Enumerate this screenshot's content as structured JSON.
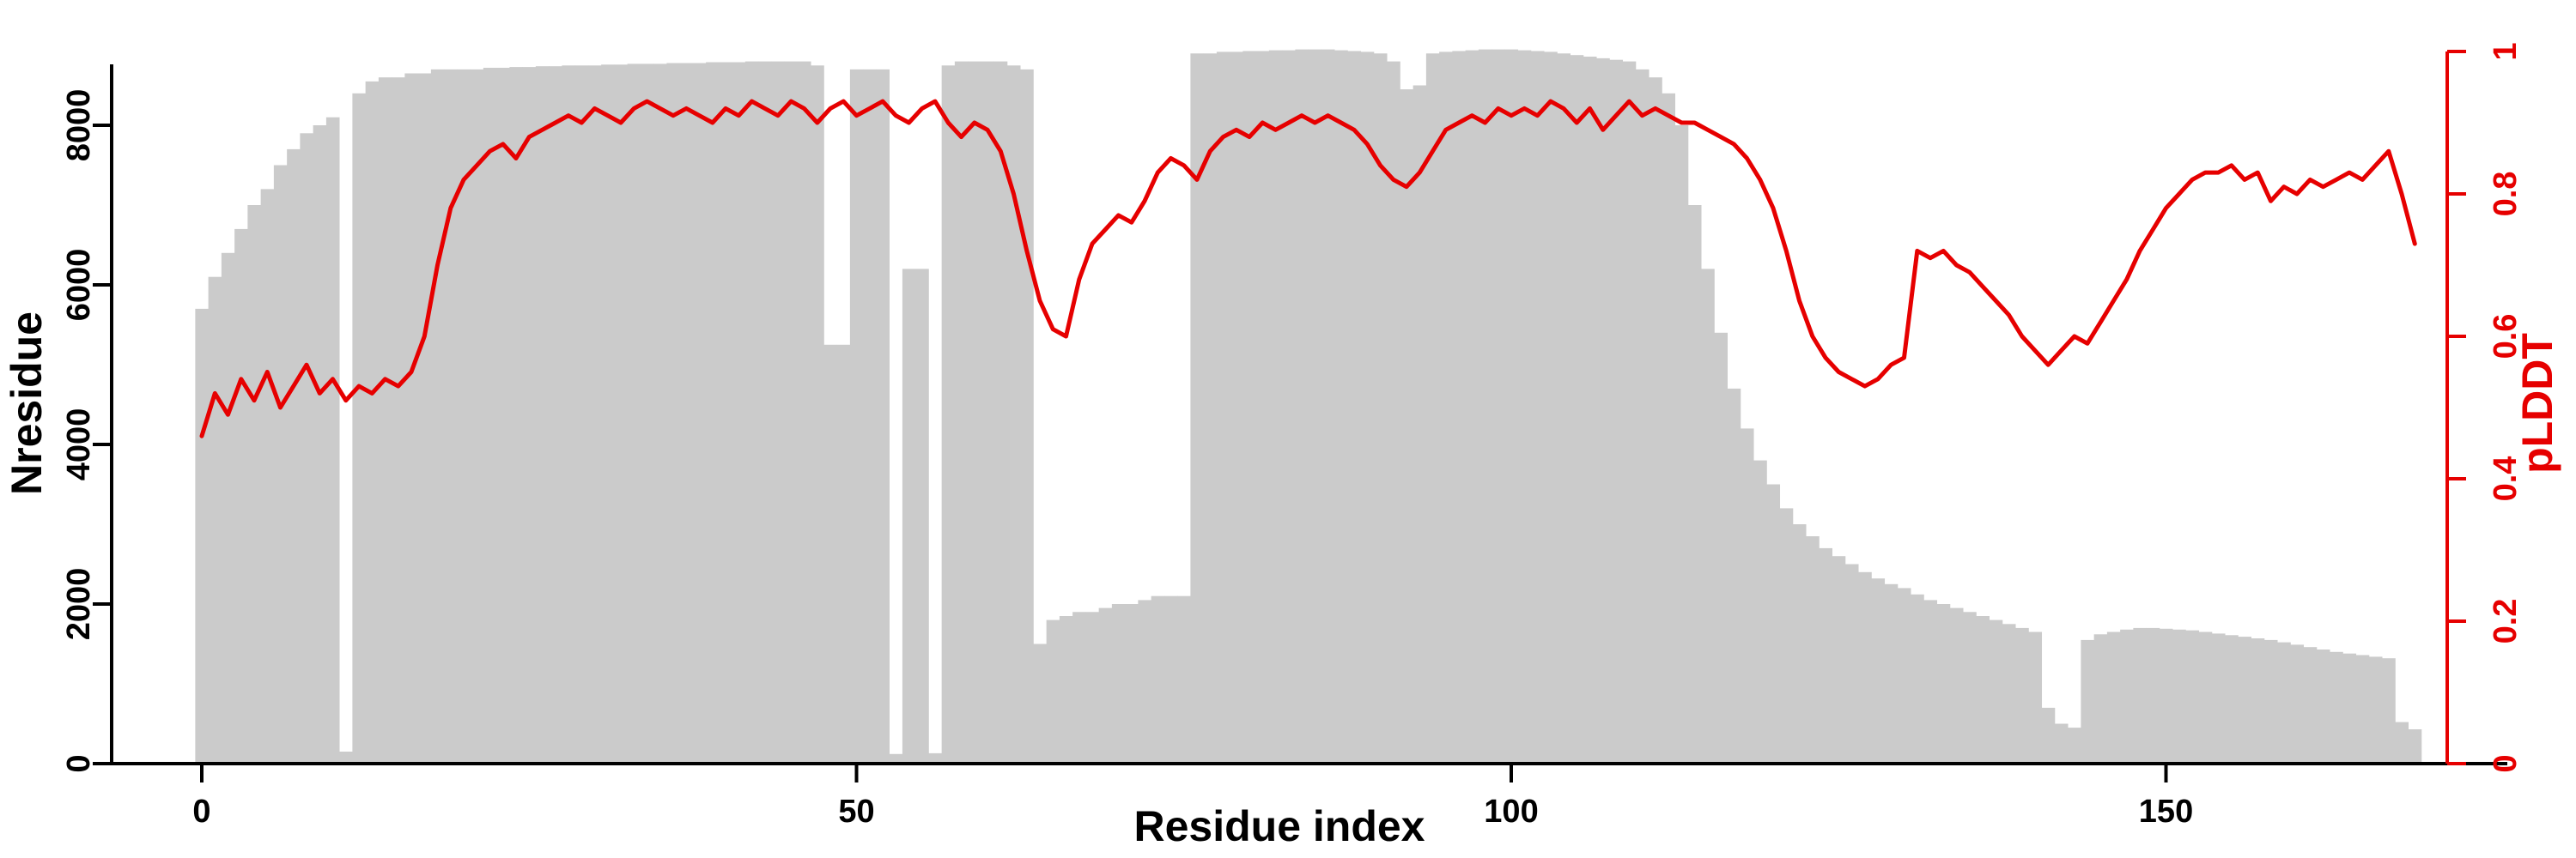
{
  "chart_data": {
    "type": "bar+line",
    "title": "",
    "xlabel": "Residue index",
    "ylabel_left": "Nresidue",
    "ylabel_right": "pLDDT",
    "x_start": 0,
    "x_step": 1,
    "n_points": 170,
    "xticks": [
      0,
      50,
      100,
      150
    ],
    "yticks_left": [
      0,
      2000,
      4000,
      6000,
      8000
    ],
    "yticks_right": [
      "0",
      "0.2",
      "0.4",
      "0.6",
      "0.8",
      "1"
    ],
    "xlim": [
      0,
      176
    ],
    "ylim_left": [
      0,
      9000
    ],
    "ylim_right": [
      0,
      1
    ],
    "bar_color": "#cbcbcb",
    "line_color": "#e60000",
    "axis_color": "#000000",
    "grid": false,
    "legend": "none",
    "series": [
      {
        "name": "Nresidue",
        "type": "bar",
        "axis": "left",
        "color": "#cbcbcb",
        "values": [
          5700,
          6100,
          6400,
          6700,
          7000,
          7200,
          7500,
          7700,
          7900,
          8000,
          8100,
          150,
          8400,
          8550,
          8600,
          8600,
          8650,
          8650,
          8700,
          8700,
          8700,
          8700,
          8720,
          8720,
          8730,
          8730,
          8740,
          8740,
          8750,
          8750,
          8750,
          8760,
          8760,
          8770,
          8770,
          8770,
          8780,
          8780,
          8780,
          8790,
          8790,
          8790,
          8800,
          8800,
          8800,
          8800,
          8800,
          8750,
          5250,
          5250,
          8700,
          8700,
          8700,
          120,
          6200,
          6200,
          130,
          8750,
          8800,
          8800,
          8800,
          8800,
          8750,
          8700,
          1500,
          1800,
          1850,
          1900,
          1900,
          1950,
          2000,
          2000,
          2050,
          2100,
          2100,
          2100,
          8900,
          8900,
          8920,
          8920,
          8930,
          8930,
          8940,
          8940,
          8950,
          8950,
          8950,
          8940,
          8930,
          8920,
          8900,
          8800,
          8450,
          8500,
          8900,
          8920,
          8930,
          8940,
          8950,
          8950,
          8950,
          8940,
          8930,
          8920,
          8900,
          8880,
          8860,
          8840,
          8820,
          8800,
          8700,
          8600,
          8400,
          8000,
          7000,
          6200,
          5400,
          4700,
          4200,
          3800,
          3500,
          3200,
          3000,
          2850,
          2700,
          2600,
          2500,
          2400,
          2320,
          2250,
          2200,
          2120,
          2050,
          2000,
          1950,
          1900,
          1850,
          1800,
          1750,
          1700,
          1650,
          700,
          500,
          450,
          1550,
          1620,
          1650,
          1680,
          1700,
          1700,
          1690,
          1680,
          1670,
          1650,
          1630,
          1610,
          1590,
          1570,
          1550,
          1520,
          1490,
          1460,
          1430,
          1400,
          1380,
          1360,
          1340,
          1320,
          520,
          430
        ]
      },
      {
        "name": "pLDDT",
        "type": "line",
        "axis": "right",
        "color": "#e60000",
        "values": [
          0.46,
          0.52,
          0.49,
          0.54,
          0.51,
          0.55,
          0.5,
          0.53,
          0.56,
          0.52,
          0.54,
          0.51,
          0.53,
          0.52,
          0.54,
          0.53,
          0.55,
          0.6,
          0.7,
          0.78,
          0.82,
          0.84,
          0.86,
          0.87,
          0.85,
          0.88,
          0.89,
          0.9,
          0.91,
          0.9,
          0.92,
          0.91,
          0.9,
          0.92,
          0.93,
          0.92,
          0.91,
          0.92,
          0.91,
          0.9,
          0.92,
          0.91,
          0.93,
          0.92,
          0.91,
          0.93,
          0.92,
          0.9,
          0.92,
          0.93,
          0.91,
          0.92,
          0.93,
          0.91,
          0.9,
          0.92,
          0.93,
          0.9,
          0.88,
          0.9,
          0.89,
          0.86,
          0.8,
          0.72,
          0.65,
          0.61,
          0.6,
          0.68,
          0.73,
          0.75,
          0.77,
          0.76,
          0.79,
          0.83,
          0.85,
          0.84,
          0.82,
          0.86,
          0.88,
          0.89,
          0.88,
          0.9,
          0.89,
          0.9,
          0.91,
          0.9,
          0.91,
          0.9,
          0.89,
          0.87,
          0.84,
          0.82,
          0.81,
          0.83,
          0.86,
          0.89,
          0.9,
          0.91,
          0.9,
          0.92,
          0.91,
          0.92,
          0.91,
          0.93,
          0.92,
          0.9,
          0.92,
          0.89,
          0.91,
          0.93,
          0.91,
          0.92,
          0.91,
          0.9,
          0.9,
          0.89,
          0.88,
          0.87,
          0.85,
          0.82,
          0.78,
          0.72,
          0.65,
          0.6,
          0.57,
          0.55,
          0.54,
          0.53,
          0.54,
          0.56,
          0.57,
          0.72,
          0.71,
          0.72,
          0.7,
          0.69,
          0.67,
          0.65,
          0.63,
          0.6,
          0.58,
          0.56,
          0.58,
          0.6,
          0.59,
          0.62,
          0.65,
          0.68,
          0.72,
          0.75,
          0.78,
          0.8,
          0.82,
          0.83,
          0.83,
          0.84,
          0.82,
          0.83,
          0.79,
          0.81,
          0.8,
          0.82,
          0.81,
          0.82,
          0.83,
          0.82,
          0.84,
          0.86,
          0.8,
          0.73
        ]
      }
    ]
  }
}
